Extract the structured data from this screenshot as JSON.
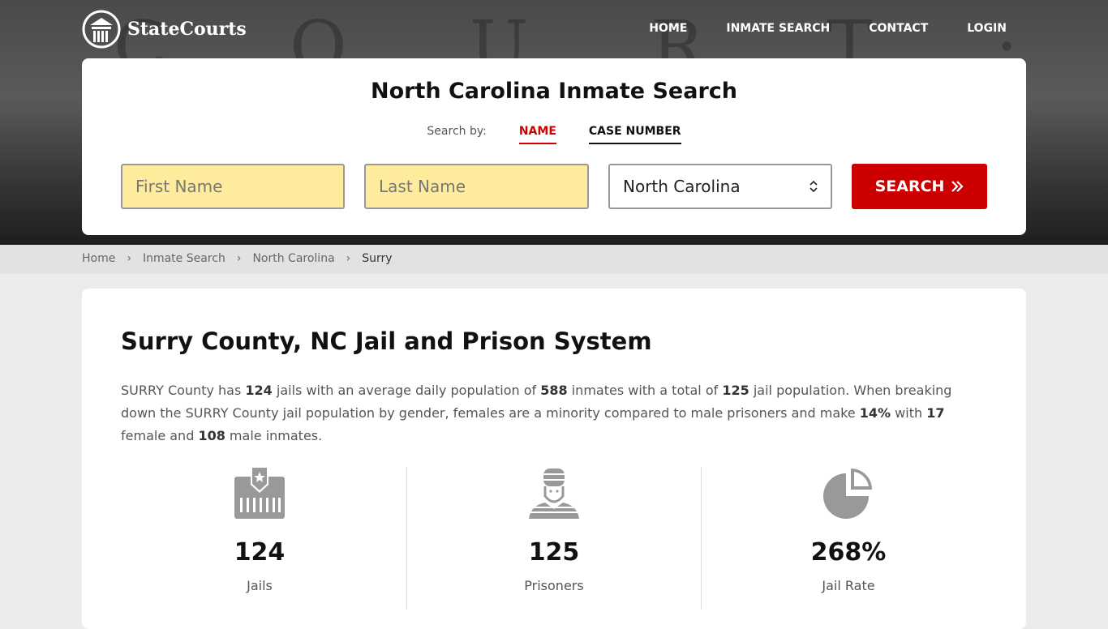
{
  "header": {
    "logo_text": "StateCourts",
    "bg_lettering": "COURT·HOUSE",
    "nav": [
      "HOME",
      "INMATE SEARCH",
      "CONTACT",
      "LOGIN"
    ]
  },
  "search": {
    "title": "North Carolina Inmate Search",
    "search_by": "Search by:",
    "tabs": [
      "NAME",
      "CASE NUMBER"
    ],
    "active_tab": "NAME",
    "first_name_placeholder": "First Name",
    "last_name_placeholder": "Last Name",
    "state_value": "North Carolina",
    "button": "SEARCH"
  },
  "breadcrumb": [
    "Home",
    "Inmate Search",
    "North Carolina",
    "Surry"
  ],
  "main": {
    "title": "Surry County, NC Jail and Prison System",
    "para": {
      "county": "SURRY",
      "jails": "124",
      "avg_pop": "588",
      "total": "125",
      "pct": "14%",
      "female": "17",
      "male": "108"
    },
    "stats": [
      {
        "value": "124",
        "label": "Jails",
        "icon": "jail-icon"
      },
      {
        "value": "125",
        "label": "Prisoners",
        "icon": "prisoner-icon"
      },
      {
        "value": "268%",
        "label": "Jail Rate",
        "icon": "pie-chart-icon"
      }
    ]
  },
  "colors": {
    "accent": "#cc0000",
    "input_bg": "#feec9c",
    "icon_gray": "#999999"
  }
}
